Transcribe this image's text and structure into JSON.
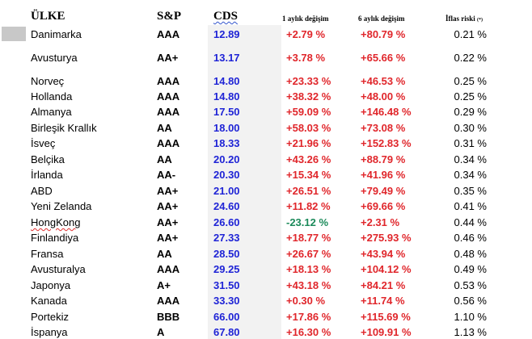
{
  "headers": {
    "country": "ÜLKE",
    "sp": "S&P",
    "cds": "CDS",
    "change_1m": "1 aylık değişim",
    "change_6m": "6 aylık değişim",
    "bankruptcy_risk": "İflas riski",
    "bankruptcy_risk_note": "(*)"
  },
  "colors": {
    "cds_text": "#1f24d6",
    "positive": "#e0262b",
    "negative": "#1b8a5a",
    "cds_band": "#f2f2f2"
  },
  "rows": [
    {
      "country": "Danimarka",
      "sp": "AAA",
      "cds": "12.89",
      "m1": "+2.79 %",
      "m6": "+80.79 %",
      "risk": "0.21 %"
    },
    {
      "country": "Avusturya",
      "sp": "AA+",
      "cds": "13.17",
      "m1": "+3.78 %",
      "m6": "+65.66 %",
      "risk": "0.22 %"
    },
    {
      "country": "Norveç",
      "sp": "AAA",
      "cds": "14.80",
      "m1": "+23.33 %",
      "m6": "+46.53 %",
      "risk": "0.25 %"
    },
    {
      "country": "Hollanda",
      "sp": "AAA",
      "cds": "14.80",
      "m1": "+38.32 %",
      "m6": "+48.00 %",
      "risk": "0.25 %"
    },
    {
      "country": "Almanya",
      "sp": "AAA",
      "cds": "17.50",
      "m1": "+59.09 %",
      "m6": "+146.48 %",
      "risk": "0.29 %"
    },
    {
      "country": "Birleşik Krallık",
      "sp": "AA",
      "cds": "18.00",
      "m1": "+58.03 %",
      "m6": "+73.08 %",
      "risk": "0.30 %"
    },
    {
      "country": "İsveç",
      "sp": "AAA",
      "cds": "18.33",
      "m1": "+21.96 %",
      "m6": "+152.83 %",
      "risk": "0.31 %"
    },
    {
      "country": "Belçika",
      "sp": "AA",
      "cds": "20.20",
      "m1": "+43.26 %",
      "m6": "+88.79 %",
      "risk": "0.34 %"
    },
    {
      "country": "İrlanda",
      "sp": "AA-",
      "cds": "20.30",
      "m1": "+15.34 %",
      "m6": "+41.96 %",
      "risk": "0.34 %"
    },
    {
      "country": "ABD",
      "sp": "AA+",
      "cds": "21.00",
      "m1": "+26.51 %",
      "m6": "+79.49 %",
      "risk": "0.35 %"
    },
    {
      "country": "Yeni Zelanda",
      "sp": "AA+",
      "cds": "24.60",
      "m1": "+11.82 %",
      "m6": "+69.66 %",
      "risk": "0.41 %"
    },
    {
      "country": "HongKong",
      "sp": "AA+",
      "cds": "26.60",
      "m1": "-23.12 %",
      "m6": "+2.31 %",
      "risk": "0.44 %"
    },
    {
      "country": "Finlandiya",
      "sp": "AA+",
      "cds": "27.33",
      "m1": "+18.77 %",
      "m6": "+275.93 %",
      "risk": "0.46 %"
    },
    {
      "country": "Fransa",
      "sp": "AA",
      "cds": "28.50",
      "m1": "+26.67 %",
      "m6": "+43.94 %",
      "risk": "0.48 %"
    },
    {
      "country": "Avusturalya",
      "sp": "AAA",
      "cds": "29.25",
      "m1": "+18.13 %",
      "m6": "+104.12 %",
      "risk": "0.49 %"
    },
    {
      "country": "Japonya",
      "sp": "A+",
      "cds": "31.50",
      "m1": "+43.18 %",
      "m6": "+84.21 %",
      "risk": "0.53 %"
    },
    {
      "country": "Kanada",
      "sp": "AAA",
      "cds": "33.30",
      "m1": "+0.30 %",
      "m6": "+11.74 %",
      "risk": "0.56 %"
    },
    {
      "country": "Portekiz",
      "sp": "BBB",
      "cds": "66.00",
      "m1": "+17.86 %",
      "m6": "+115.69 %",
      "risk": "1.10 %"
    },
    {
      "country": "İspanya",
      "sp": "A",
      "cds": "67.80",
      "m1": "+16.30 %",
      "m6": "+109.91 %",
      "risk": "1.13 %"
    }
  ]
}
